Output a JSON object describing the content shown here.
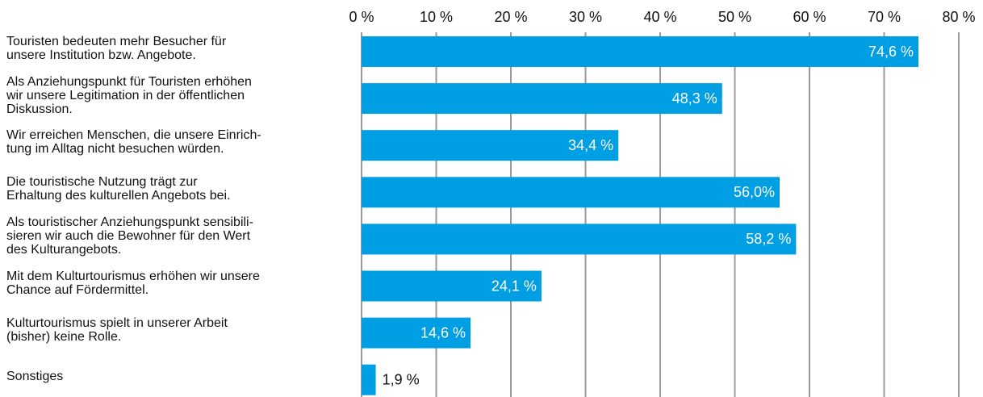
{
  "chart_data": {
    "type": "bar",
    "orientation": "horizontal",
    "categories": [
      "Touristen bedeuten mehr Besucher für\nunsere Institution bzw. Angebote.",
      "Als Anziehungspunkt für Touristen erhöhen\nwir unsere Legitimation in der öffentlichen\nDiskussion.",
      "Wir erreichen Menschen, die unsere Einrich-\ntung im Alltag nicht besuchen würden.",
      "Die touristische Nutzung trägt zur\nErhaltung des kulturellen Angebots bei.",
      "Als touristischer Anziehungspunkt sensibili-\nsieren wir auch die Bewohner für den Wert\ndes Kulturangebots.",
      "Mit dem Kulturtourismus erhöhen wir unsere\nChance auf Fördermittel.",
      "Kulturtourismus spielt in unserer Arbeit\n(bisher) keine Rolle.",
      "Sonstiges"
    ],
    "values": [
      74.6,
      48.3,
      34.4,
      56.0,
      58.2,
      24.1,
      14.6,
      1.9
    ],
    "value_labels": [
      "74,6 %",
      "48,3 %",
      "34,4 %",
      "56,0%",
      "58,2 %",
      "24,1 %",
      "14,6 %",
      "1,9 %"
    ],
    "color": "#009fe3",
    "xlim": [
      0,
      80
    ],
    "xticks": [
      {
        "value": 0,
        "label": "0 %"
      },
      {
        "value": 10,
        "label": "10 %"
      },
      {
        "value": 20,
        "label": "20 %"
      },
      {
        "value": 30,
        "label": "30 %"
      },
      {
        "value": 40,
        "label": "40 %"
      },
      {
        "value": 50,
        "label": "50 %"
      },
      {
        "value": 60,
        "label": "60 %"
      },
      {
        "value": 70,
        "label": "70 %"
      },
      {
        "value": 80,
        "label": "80 %"
      }
    ],
    "grid": true
  }
}
